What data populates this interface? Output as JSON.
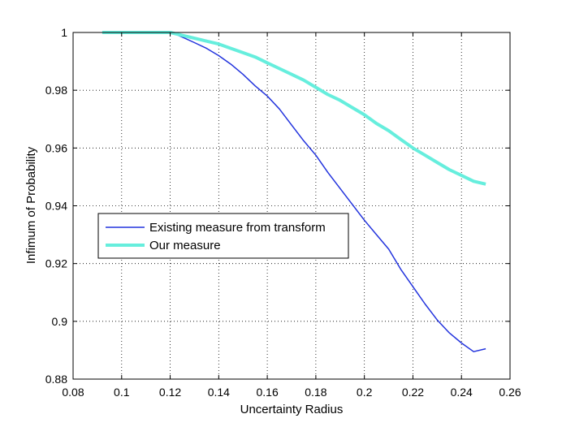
{
  "chart_data": {
    "type": "line",
    "xlabel": "Uncertainty Radius",
    "ylabel": "Infimum of Probability",
    "xlim": [
      0.08,
      0.26
    ],
    "ylim": [
      0.88,
      1.0
    ],
    "xticks": [
      0.08,
      0.1,
      0.12,
      0.14,
      0.16,
      0.18,
      0.2,
      0.22,
      0.24,
      0.26
    ],
    "yticks": [
      0.88,
      0.9,
      0.92,
      0.94,
      0.96,
      0.98,
      1.0
    ],
    "xtick_labels": [
      "0.08",
      "0.1",
      "0.12",
      "0.14",
      "0.16",
      "0.18",
      "0.2",
      "0.22",
      "0.24",
      "0.26"
    ],
    "ytick_labels": [
      "0.88",
      "0.9",
      "0.92",
      "0.94",
      "0.96",
      "0.98",
      "1"
    ],
    "grid": true,
    "legend_position": "left-middle",
    "series": [
      {
        "name": "Existing measure from transform",
        "color": "#2233dd",
        "x": [
          0.092,
          0.1,
          0.11,
          0.118,
          0.122,
          0.126,
          0.13,
          0.135,
          0.14,
          0.145,
          0.15,
          0.155,
          0.16,
          0.165,
          0.17,
          0.175,
          0.18,
          0.185,
          0.19,
          0.195,
          0.2,
          0.205,
          0.21,
          0.215,
          0.22,
          0.225,
          0.23,
          0.235,
          0.24,
          0.245,
          0.25
        ],
        "y": [
          1.0,
          1.0,
          1.0,
          1.0,
          0.9995,
          0.998,
          0.9965,
          0.9945,
          0.992,
          0.989,
          0.9855,
          0.9815,
          0.978,
          0.9735,
          0.968,
          0.9625,
          0.9575,
          0.9515,
          0.946,
          0.9405,
          0.935,
          0.93,
          0.925,
          0.918,
          0.912,
          0.906,
          0.9005,
          0.896,
          0.8925,
          0.8895,
          0.8905
        ]
      },
      {
        "name": "Our measure",
        "color": "#66eedd",
        "x": [
          0.092,
          0.1,
          0.11,
          0.12,
          0.125,
          0.13,
          0.135,
          0.14,
          0.145,
          0.15,
          0.155,
          0.16,
          0.165,
          0.17,
          0.175,
          0.18,
          0.185,
          0.19,
          0.195,
          0.2,
          0.205,
          0.21,
          0.215,
          0.22,
          0.225,
          0.23,
          0.235,
          0.24,
          0.245,
          0.25
        ],
        "y": [
          1.0,
          1.0,
          1.0,
          1.0,
          0.999,
          0.998,
          0.997,
          0.996,
          0.9945,
          0.993,
          0.9915,
          0.9895,
          0.9875,
          0.9855,
          0.9835,
          0.981,
          0.9785,
          0.9765,
          0.974,
          0.9715,
          0.9685,
          0.966,
          0.963,
          0.96,
          0.9575,
          0.955,
          0.9525,
          0.9505,
          0.9485,
          0.9475
        ]
      }
    ]
  }
}
